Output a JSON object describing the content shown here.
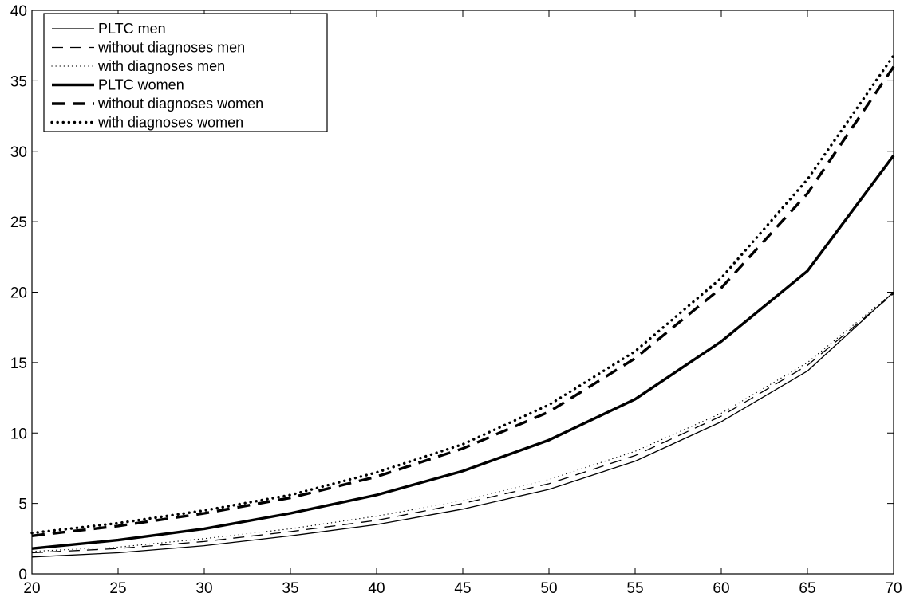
{
  "chart_data": {
    "type": "line",
    "title": "",
    "xlabel": "",
    "ylabel": "",
    "xlim": [
      20,
      70
    ],
    "ylim": [
      0,
      40
    ],
    "x_ticks": [
      20,
      25,
      30,
      35,
      40,
      45,
      50,
      55,
      60,
      65,
      70
    ],
    "y_ticks": [
      0,
      5,
      10,
      15,
      20,
      25,
      30,
      35,
      40
    ],
    "grid": false,
    "legend_position": "top-left",
    "x": [
      20,
      25,
      30,
      35,
      40,
      45,
      50,
      55,
      60,
      65,
      70
    ],
    "series": [
      {
        "name": "PLTC men",
        "style": "solid",
        "weight": "thin",
        "values": [
          1.2,
          1.5,
          2.0,
          2.7,
          3.5,
          4.6,
          6.0,
          8.0,
          10.8,
          14.4,
          20.0
        ]
      },
      {
        "name": "without diagnoses men",
        "style": "dashed",
        "weight": "thin",
        "values": [
          1.5,
          1.8,
          2.3,
          3.0,
          3.8,
          5.0,
          6.4,
          8.4,
          11.2,
          14.8,
          19.9
        ]
      },
      {
        "name": "with diagnoses men",
        "style": "dotted",
        "weight": "thin",
        "values": [
          1.6,
          1.9,
          2.5,
          3.2,
          4.1,
          5.2,
          6.7,
          8.7,
          11.4,
          15.0,
          20.0
        ]
      },
      {
        "name": "PLTC women",
        "style": "solid",
        "weight": "thick",
        "values": [
          1.8,
          2.4,
          3.2,
          4.3,
          5.6,
          7.3,
          9.5,
          12.4,
          16.5,
          21.5,
          29.7
        ]
      },
      {
        "name": "without diagnoses women",
        "style": "dashed",
        "weight": "thick",
        "values": [
          2.7,
          3.4,
          4.3,
          5.4,
          6.9,
          8.9,
          11.5,
          15.3,
          20.3,
          27.0,
          36.0
        ]
      },
      {
        "name": "with diagnoses women",
        "style": "dotted",
        "weight": "thick",
        "values": [
          2.9,
          3.6,
          4.5,
          5.6,
          7.2,
          9.2,
          12.0,
          15.8,
          21.0,
          28.0,
          36.8
        ]
      }
    ]
  }
}
